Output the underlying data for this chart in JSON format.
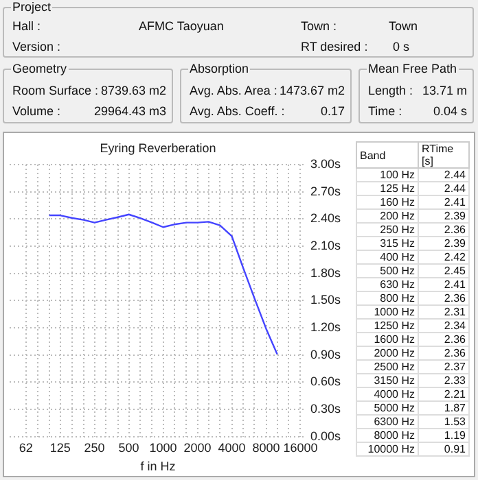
{
  "chart_data": {
    "type": "line",
    "title": "Eyring Reverberation",
    "xlabel": "f in Hz",
    "log": "x",
    "series": [
      {
        "color": "#4444ff",
        "x": [
          100,
          125,
          160,
          200,
          250,
          315,
          400,
          500,
          630,
          800,
          1000,
          1250,
          1600,
          2000,
          2500,
          3150,
          4000,
          5000,
          6300,
          8000,
          10000
        ],
        "values": [
          2.44,
          2.44,
          2.41,
          2.39,
          2.36,
          2.39,
          2.42,
          2.45,
          2.41,
          2.36,
          2.31,
          2.34,
          2.36,
          2.36,
          2.37,
          2.33,
          2.21,
          1.87,
          1.53,
          1.19,
          0.91
        ]
      }
    ],
    "marker": "none",
    "grid": true,
    "legend": false,
    "xlim": [
      45,
      18000
    ],
    "xticks": [
      {
        "value": 62.5,
        "label": "62"
      },
      {
        "value": 80,
        "label": null
      },
      {
        "value": 100,
        "label": null
      },
      125,
      {
        "value": 160,
        "label": null
      },
      {
        "value": 200,
        "label": null
      },
      250,
      {
        "value": 315,
        "label": null
      },
      {
        "value": 400,
        "label": null
      },
      500,
      {
        "value": 630,
        "label": null
      },
      {
        "value": 800,
        "label": null
      },
      1000,
      {
        "value": 1250,
        "label": null
      },
      {
        "value": 1600,
        "label": null
      },
      2000,
      {
        "value": 2500,
        "label": null
      },
      {
        "value": 3150,
        "label": null
      },
      4000,
      {
        "value": 5000,
        "label": null
      },
      {
        "value": 6300,
        "label": null
      },
      8000,
      {
        "value": 10000,
        "label": null
      },
      {
        "value": 12500,
        "label": null
      },
      16000
    ],
    "ylim": [
      0,
      3
    ],
    "yticks": [
      {
        "value": 0,
        "label": "0.00s"
      },
      {
        "value": 0.3,
        "label": "0.30s"
      },
      {
        "value": 0.6,
        "label": "0.60s"
      },
      {
        "value": 0.9,
        "label": "0.90s"
      },
      {
        "value": 1.2,
        "label": "1.20s"
      },
      {
        "value": 1.5,
        "label": "1.50s"
      },
      {
        "value": 1.8,
        "label": "1.80s"
      },
      {
        "value": 2.1,
        "label": "2.10s"
      },
      {
        "value": 2.4,
        "label": "2.40s"
      },
      {
        "value": 2.7,
        "label": "2.70s"
      },
      {
        "value": 3.0,
        "label": "3.00s"
      }
    ],
    "annotations": [
      "Project",
      "Hall :",
      "AFMC Taoyuan",
      "Town :",
      "Town",
      "Version :",
      "RT desired :",
      "0 s",
      "Geometry",
      "Room Surface :",
      "8739.63 m2",
      "Volume :",
      "29964.43 m3",
      "Absorption",
      "Avg. Abs. Area :",
      "1473.67 m2",
      "Avg. Abs. Coeff. :",
      "0.17",
      "Mean Free Path",
      "Length :",
      "13.71 m",
      "Time :",
      "0.04 s",
      "Band",
      "RTime [s]",
      "100 Hz",
      "125 Hz",
      "160 Hz",
      "200 Hz",
      "250 Hz",
      "315 Hz",
      "400 Hz",
      "500 Hz",
      "630 Hz",
      "800 Hz",
      "1000 Hz",
      "1250 Hz",
      "1600 Hz",
      "2000 Hz",
      "2500 Hz",
      "3150 Hz",
      "4000 Hz",
      "5000 Hz",
      "6300 Hz",
      "8000 Hz",
      "10000 Hz",
      "2.44",
      "2.44",
      "2.41",
      "2.39",
      "2.36",
      "2.39",
      "2.42",
      "2.45",
      "2.41",
      "2.36",
      "2.31",
      "2.34",
      "2.36",
      "2.36",
      "2.37",
      "2.33",
      "2.21",
      "1.87",
      "1.53",
      "1.19",
      "0.91"
    ]
  }
}
